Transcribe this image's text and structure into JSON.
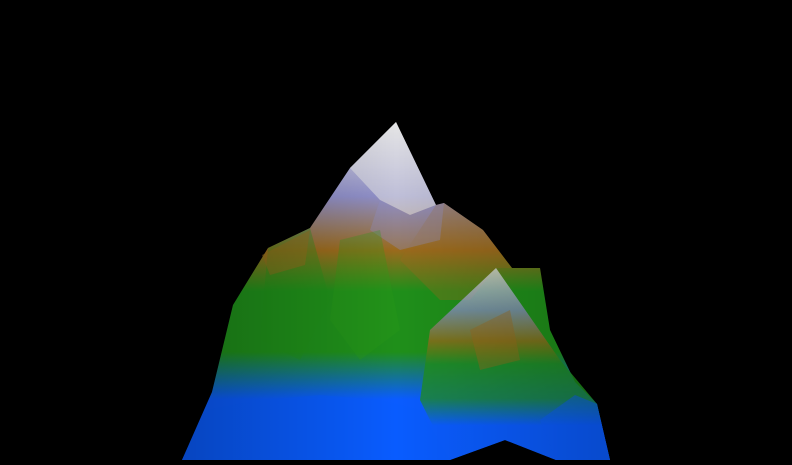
{
  "scene": {
    "background_color": "#000000",
    "terrain_colors": {
      "water": "#0a5cff",
      "lowland": "#1f8f1a",
      "highland": "#9a6a1c",
      "peak_slate": "#8f8fc8",
      "snow": "#e6e6e6"
    }
  }
}
